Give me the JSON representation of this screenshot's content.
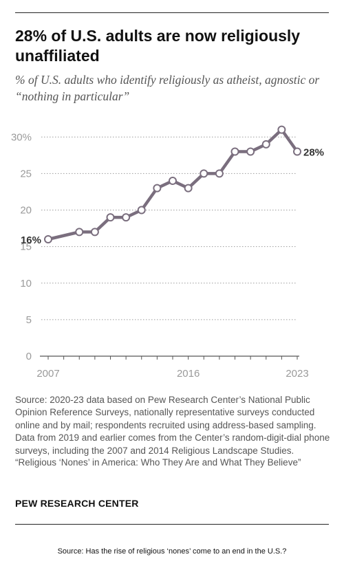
{
  "header": {
    "title": "28% of U.S. adults are now religiously unaffiliated",
    "subtitle": "% of U.S. adults who identify religiously as atheist, agnostic or “nothing in particular”"
  },
  "chart_data": {
    "type": "line",
    "title": "28% of U.S. adults are now religiously unaffiliated",
    "subtitle": "% of U.S. adults who identify religiously as atheist, agnostic or “nothing in particular”",
    "xlabel": "",
    "ylabel": "",
    "ylim": [
      0,
      32
    ],
    "xlim": [
      2007,
      2023
    ],
    "y_ticks": [
      0,
      5,
      10,
      15,
      20,
      25,
      30
    ],
    "y_tick_labels": [
      "0",
      "5",
      "10",
      "15",
      "20",
      "25",
      "30%"
    ],
    "x_tick_labels": [
      "2007",
      "2016",
      "2023"
    ],
    "x": [
      2007,
      2009,
      2010,
      2011,
      2012,
      2013,
      2014,
      2015,
      2016,
      2017,
      2018,
      2019,
      2020,
      2021,
      2022,
      2023
    ],
    "values": [
      16,
      17,
      17,
      19,
      19,
      20,
      23,
      24,
      23,
      25,
      25,
      28,
      28,
      29,
      31,
      28
    ],
    "data_labels": [
      {
        "x": 2007,
        "value": 16,
        "text": "16%"
      },
      {
        "x": 2023,
        "value": 28,
        "text": "28%"
      }
    ],
    "grid": true,
    "line_color": "#7a6e7e"
  },
  "source": {
    "text": "Source: 2020-23 data based on Pew Research Center’s National Public Opinion Reference Surveys, nationally representative surveys conducted online and by mail; respondents recruited using address-based sampling. Data from 2019 and earlier comes from the Center’s random-digit-dial phone surveys, including the 2007 and 2014 Religious Landscape Studies.",
    "reference": "“Religious ‘Nones’ in America: Who They Are and What They Believe”"
  },
  "brand": "PEW RESEARCH CENTER",
  "footer_source": "Source: Has the rise of religious ‘nones’ come to an end in the U.S.?"
}
